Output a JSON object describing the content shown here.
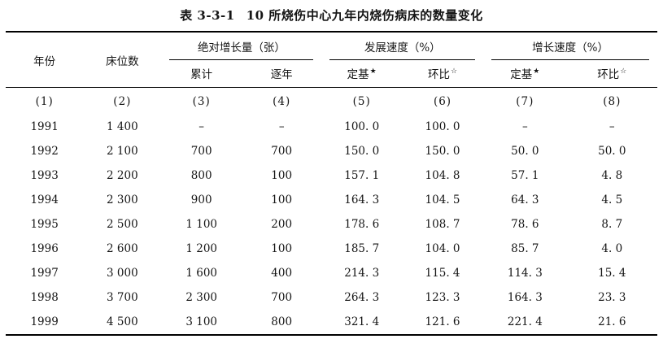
{
  "title": {
    "number": "表 3-3-1",
    "caption": "10 所烧伤中心九年内烧伤病床的数量变化"
  },
  "table": {
    "headers": {
      "year": "年份",
      "beds": "床位数",
      "group_absolute_increase": "绝对增长量（张）",
      "group_development_speed": "发展速度（%）",
      "group_growth_speed": "增长速度（%）",
      "sub_cumulative": "累计",
      "sub_year_by_year": "逐年",
      "sub_fixed_base": "定基",
      "sub_ring_ratio": "环比",
      "marker_filled_star": "★",
      "marker_open_star": "☆"
    },
    "column_indices": [
      "(1)",
      "(2)",
      "(3)",
      "(4)",
      "(5)",
      "(6)",
      "(7)",
      "(8)"
    ],
    "rows": [
      [
        "1991",
        "1 400",
        "–",
        "–",
        "100. 0",
        "100. 0",
        "–",
        "–"
      ],
      [
        "1992",
        "2 100",
        "700",
        "700",
        "150. 0",
        "150. 0",
        "50. 0",
        "50. 0"
      ],
      [
        "1993",
        "2 200",
        "800",
        "100",
        "157. 1",
        "104. 8",
        "57. 1",
        "4. 8"
      ],
      [
        "1994",
        "2 300",
        "900",
        "100",
        "164. 3",
        "104. 5",
        "64. 3",
        "4. 5"
      ],
      [
        "1995",
        "2 500",
        "1 100",
        "200",
        "178. 6",
        "108. 7",
        "78. 6",
        "8. 7"
      ],
      [
        "1996",
        "2 600",
        "1 200",
        "100",
        "185. 7",
        "104. 0",
        "85. 7",
        "4. 0"
      ],
      [
        "1997",
        "3 000",
        "1 600",
        "400",
        "214. 3",
        "115. 4",
        "114. 3",
        "15. 4"
      ],
      [
        "1998",
        "3 700",
        "2 300",
        "700",
        "264. 3",
        "123. 3",
        "164. 3",
        "23. 3"
      ],
      [
        "1999",
        "4 500",
        "3 100",
        "800",
        "321. 4",
        "121. 6",
        "221. 4",
        "21. 6"
      ]
    ]
  }
}
